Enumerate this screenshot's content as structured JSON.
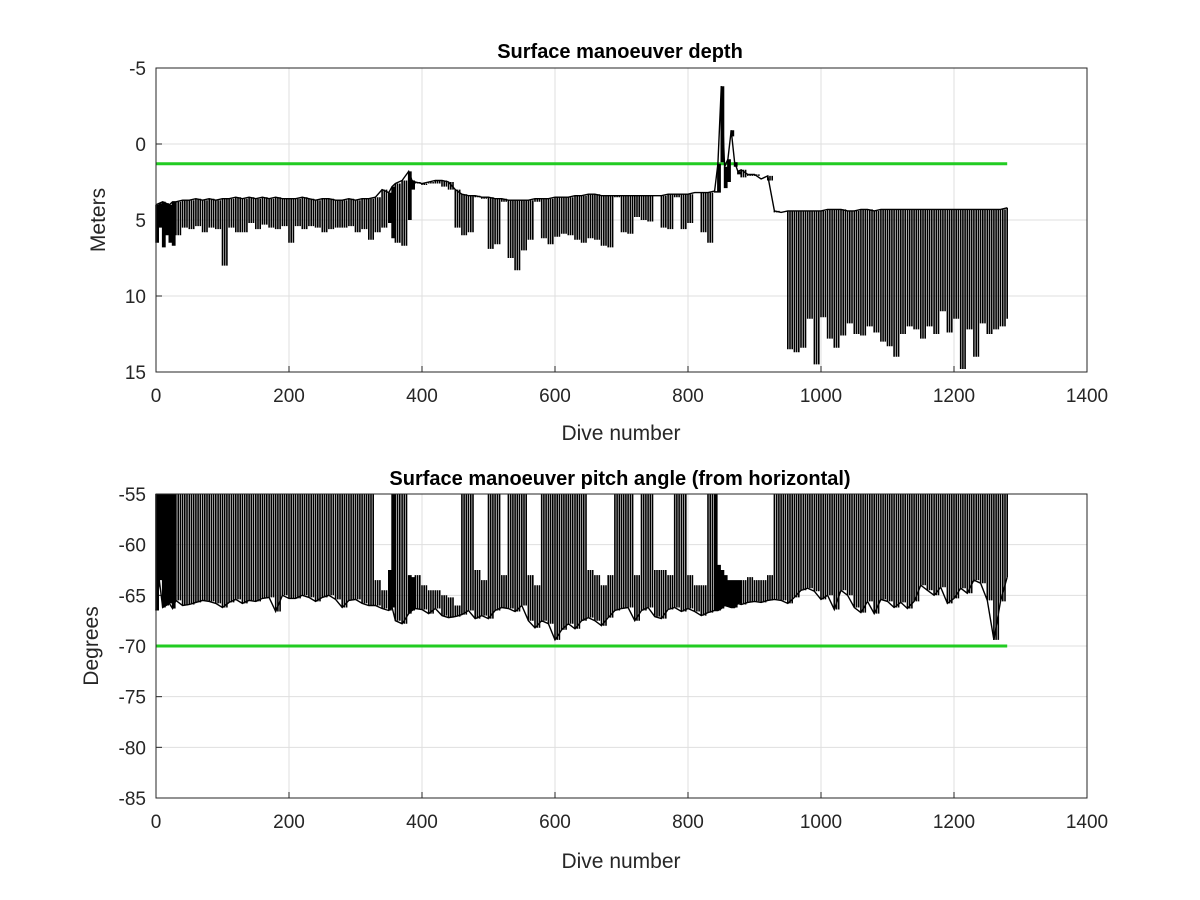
{
  "chart_data": [
    {
      "type": "line",
      "title": "Surface manoeuver depth",
      "xlabel": "Dive number",
      "ylabel": "Meters",
      "xlim": [
        0,
        1400
      ],
      "ylim": [
        -5,
        15
      ],
      "y_reversed": true,
      "grid": true,
      "xticks": [
        "0",
        "200",
        "400",
        "600",
        "800",
        "1000",
        "1200",
        "1400"
      ],
      "yticks": [
        "-5",
        "0",
        "5",
        "10",
        "15"
      ],
      "reference_line": {
        "y": 1.3,
        "x": [
          0,
          1280
        ],
        "color": "#22cc22"
      },
      "series": [
        {
          "color": "#000000",
          "x": [
            0,
            5,
            10,
            15,
            20,
            25,
            30,
            40,
            50,
            60,
            70,
            80,
            90,
            100,
            110,
            120,
            130,
            140,
            150,
            160,
            170,
            180,
            190,
            200,
            210,
            220,
            230,
            240,
            250,
            260,
            270,
            280,
            290,
            300,
            310,
            320,
            330,
            340,
            350,
            355,
            360,
            370,
            380,
            385,
            390,
            400,
            410,
            420,
            430,
            440,
            450,
            460,
            470,
            480,
            490,
            500,
            510,
            520,
            530,
            540,
            550,
            560,
            570,
            580,
            590,
            600,
            610,
            620,
            630,
            640,
            650,
            660,
            670,
            680,
            690,
            700,
            710,
            720,
            730,
            740,
            750,
            760,
            770,
            780,
            790,
            800,
            810,
            820,
            830,
            840,
            845,
            850,
            855,
            860,
            865,
            870,
            875,
            880,
            890,
            900,
            910,
            920,
            930,
            940,
            950,
            960,
            970,
            980,
            990,
            1000,
            1010,
            1020,
            1030,
            1040,
            1050,
            1060,
            1070,
            1080,
            1090,
            1100,
            1110,
            1120,
            1130,
            1140,
            1150,
            1160,
            1170,
            1180,
            1190,
            1200,
            1210,
            1220,
            1230,
            1240,
            1250,
            1260,
            1270,
            1280
          ],
          "y_min": [
            4.0,
            3.9,
            3.8,
            3.9,
            4.0,
            3.8,
            3.8,
            3.7,
            3.7,
            3.6,
            3.7,
            3.6,
            3.7,
            3.6,
            3.6,
            3.5,
            3.6,
            3.5,
            3.6,
            3.5,
            3.6,
            3.5,
            3.6,
            3.6,
            3.6,
            3.5,
            3.6,
            3.7,
            3.6,
            3.6,
            3.7,
            3.7,
            3.6,
            3.7,
            3.6,
            3.6,
            3.5,
            3.0,
            3.2,
            2.8,
            2.6,
            2.4,
            1.8,
            2.4,
            2.5,
            2.6,
            2.5,
            2.4,
            2.4,
            2.5,
            3.0,
            3.3,
            3.4,
            3.4,
            3.5,
            3.5,
            3.6,
            3.6,
            3.7,
            3.7,
            3.7,
            3.7,
            3.6,
            3.6,
            3.6,
            3.5,
            3.5,
            3.5,
            3.4,
            3.4,
            3.3,
            3.3,
            3.4,
            3.4,
            3.4,
            3.4,
            3.4,
            3.4,
            3.4,
            3.4,
            3.4,
            3.4,
            3.3,
            3.3,
            3.3,
            3.3,
            3.2,
            3.2,
            3.2,
            3.1,
            1.3,
            -3.8,
            1.5,
            1.0,
            -0.9,
            1.2,
            1.8,
            1.7,
            2.0,
            2.0,
            2.3,
            2.1,
            4.4,
            4.5,
            4.4,
            4.4,
            4.4,
            4.4,
            4.4,
            4.4,
            4.3,
            4.3,
            4.3,
            4.4,
            4.4,
            4.3,
            4.3,
            4.4,
            4.3,
            4.3,
            4.3,
            4.3,
            4.3,
            4.3,
            4.3,
            4.3,
            4.3,
            4.3,
            4.3,
            4.3,
            4.3,
            4.3,
            4.3,
            4.3,
            4.3,
            4.3,
            4.3,
            4.2
          ],
          "y_max": [
            6.5,
            5.5,
            6.8,
            6.0,
            6.5,
            6.7,
            6.0,
            5.5,
            5.6,
            5.4,
            5.8,
            5.5,
            5.6,
            8.0,
            5.5,
            5.8,
            5.8,
            5.2,
            5.6,
            5.3,
            5.5,
            5.6,
            5.4,
            6.5,
            5.4,
            5.6,
            5.4,
            5.5,
            5.8,
            5.6,
            5.5,
            5.5,
            5.4,
            5.8,
            5.6,
            6.3,
            5.8,
            5.5,
            5.2,
            6.2,
            6.5,
            6.7,
            5.0,
            3.0,
            2.6,
            2.7,
            2.6,
            2.6,
            2.8,
            3.0,
            5.5,
            6.0,
            5.8,
            3.5,
            3.6,
            6.9,
            6.6,
            3.8,
            7.5,
            8.3,
            7.0,
            6.3,
            3.8,
            6.2,
            6.6,
            6.1,
            5.9,
            6.0,
            6.3,
            6.5,
            6.2,
            6.3,
            6.7,
            6.8,
            3.5,
            5.8,
            5.9,
            4.8,
            5.0,
            5.1,
            3.4,
            5.5,
            5.6,
            3.5,
            5.6,
            5.2,
            3.2,
            5.8,
            6.5,
            3.2,
            3.2,
            1.2,
            2.9,
            2.5,
            -0.5,
            1.5,
            2.0,
            2.2,
            2.1,
            2.1,
            2.3,
            2.4,
            4.5,
            4.5,
            13.5,
            13.7,
            13.4,
            11.5,
            14.5,
            11.4,
            12.8,
            13.4,
            12.6,
            11.8,
            12.5,
            12.6,
            12.0,
            12.4,
            13.0,
            13.3,
            14.0,
            12.5,
            12.0,
            12.2,
            12.8,
            12.0,
            12.5,
            11.0,
            12.4,
            11.5,
            14.8,
            12.2,
            14.0,
            11.8,
            12.5,
            12.2,
            12.0,
            11.5
          ]
        }
      ]
    },
    {
      "type": "line",
      "title": "Surface manoeuver pitch angle (from horizontal)",
      "xlabel": "Dive number",
      "ylabel": "Degrees",
      "xlim": [
        0,
        1400
      ],
      "ylim": [
        -85,
        -55
      ],
      "grid": true,
      "xticks": [
        "0",
        "200",
        "400",
        "600",
        "800",
        "1000",
        "1200",
        "1400"
      ],
      "yticks": [
        "-55",
        "-60",
        "-65",
        "-70",
        "-75",
        "-80",
        "-85"
      ],
      "reference_line": {
        "y": -70,
        "x": [
          0,
          1280
        ],
        "color": "#22cc22"
      },
      "series": [
        {
          "color": "#000000",
          "x": [
            0,
            5,
            10,
            15,
            20,
            25,
            30,
            40,
            50,
            60,
            70,
            80,
            90,
            100,
            110,
            120,
            130,
            140,
            150,
            160,
            170,
            180,
            190,
            200,
            210,
            220,
            230,
            240,
            250,
            260,
            270,
            280,
            290,
            300,
            310,
            320,
            330,
            340,
            350,
            355,
            360,
            370,
            380,
            385,
            390,
            400,
            410,
            420,
            430,
            440,
            450,
            460,
            470,
            480,
            490,
            500,
            510,
            520,
            530,
            540,
            550,
            560,
            570,
            580,
            590,
            600,
            610,
            620,
            630,
            640,
            650,
            660,
            670,
            680,
            690,
            700,
            710,
            720,
            730,
            740,
            750,
            760,
            770,
            780,
            790,
            800,
            810,
            820,
            830,
            840,
            845,
            850,
            855,
            860,
            865,
            870,
            875,
            880,
            890,
            900,
            910,
            920,
            930,
            940,
            950,
            960,
            970,
            980,
            990,
            1000,
            1010,
            1020,
            1030,
            1040,
            1050,
            1060,
            1070,
            1080,
            1090,
            1100,
            1110,
            1120,
            1130,
            1140,
            1150,
            1160,
            1170,
            1180,
            1190,
            1200,
            1210,
            1220,
            1230,
            1240,
            1250,
            1260,
            1270,
            1280
          ],
          "y_min": [
            -66.5,
            -63.5,
            -66.2,
            -66.0,
            -65.8,
            -66.3,
            -65.5,
            -66.0,
            -65.9,
            -65.7,
            -65.5,
            -65.6,
            -65.8,
            -66.2,
            -65.7,
            -65.4,
            -65.8,
            -65.5,
            -65.6,
            -65.3,
            -65.2,
            -66.6,
            -65.0,
            -65.3,
            -65.3,
            -65.0,
            -65.2,
            -65.6,
            -65.2,
            -65.0,
            -65.4,
            -66.2,
            -65.5,
            -65.4,
            -65.8,
            -66.0,
            -66.0,
            -66.3,
            -66.5,
            -66.2,
            -67.5,
            -67.8,
            -66.8,
            -66.5,
            -66.3,
            -66.4,
            -66.8,
            -66.3,
            -67.0,
            -67.2,
            -67.1,
            -66.9,
            -66.5,
            -67.3,
            -67.0,
            -67.3,
            -66.5,
            -66.2,
            -66.3,
            -66.6,
            -66.0,
            -67.5,
            -68.2,
            -67.5,
            -67.8,
            -69.4,
            -68.4,
            -67.8,
            -68.3,
            -67.5,
            -67.2,
            -67.5,
            -68.0,
            -67.2,
            -66.5,
            -66.3,
            -66.2,
            -67.5,
            -66.5,
            -66.2,
            -67.1,
            -67.3,
            -66.4,
            -66.2,
            -66.6,
            -66.3,
            -66.6,
            -67.0,
            -66.7,
            -66.5,
            -66.5,
            -66.3,
            -66.0,
            -66.1,
            -66.2,
            -66.2,
            -65.8,
            -65.9,
            -65.7,
            -65.6,
            -65.7,
            -65.5,
            -65.4,
            -65.5,
            -65.8,
            -65.2,
            -64.5,
            -64.3,
            -64.6,
            -65.4,
            -65.0,
            -66.4,
            -64.5,
            -65.0,
            -66.2,
            -66.7,
            -65.6,
            -66.8,
            -65.4,
            -65.6,
            -66.2,
            -65.7,
            -66.3,
            -65.6,
            -64.0,
            -64.5,
            -65.0,
            -64.2,
            -65.8,
            -65.3,
            -64.3,
            -64.8,
            -63.5,
            -63.8,
            -65.5,
            -69.4,
            -65.6,
            -63.2
          ],
          "y_max": [
            -55,
            -55,
            -55,
            -55,
            -55,
            -55,
            -55,
            -55,
            -55,
            -55,
            -55,
            -55,
            -55,
            -55,
            -55,
            -55,
            -55,
            -55,
            -55,
            -55,
            -55,
            -55,
            -55,
            -55,
            -55,
            -55,
            -55,
            -55,
            -55,
            -55,
            -55,
            -55,
            -55,
            -55,
            -55,
            -55,
            -63.5,
            -64.5,
            -62.5,
            -55,
            -55,
            -55,
            -63.0,
            -63.2,
            -63.0,
            -64.0,
            -64.5,
            -64.5,
            -65.0,
            -65.2,
            -66.0,
            -55,
            -55,
            -62.5,
            -63.5,
            -55,
            -55,
            -63.0,
            -55,
            -55,
            -55,
            -63.0,
            -64.0,
            -55,
            -55,
            -55,
            -55,
            -55,
            -55,
            -55,
            -62.5,
            -63.0,
            -64.0,
            -63.0,
            -55,
            -55,
            -55,
            -63.0,
            -55,
            -55,
            -62.5,
            -62.5,
            -63.0,
            -55,
            -55,
            -63.0,
            -64.0,
            -64.0,
            -55,
            -55,
            -62.0,
            -62.5,
            -63.0,
            -63.5,
            -63.5,
            -63.5,
            -63.5,
            -63.5,
            -63.2,
            -63.5,
            -63.5,
            -63.0,
            -55,
            -55,
            -55,
            -55,
            -55,
            -55,
            -55,
            -55,
            -55,
            -55,
            -55,
            -55,
            -55,
            -55,
            -55,
            -55,
            -55,
            -55,
            -55,
            -55,
            -55,
            -55,
            -55,
            -55,
            -55,
            -55,
            -55,
            -55,
            -55,
            -55,
            -55,
            -55,
            -55,
            -55,
            -55,
            -55
          ]
        }
      ]
    }
  ]
}
